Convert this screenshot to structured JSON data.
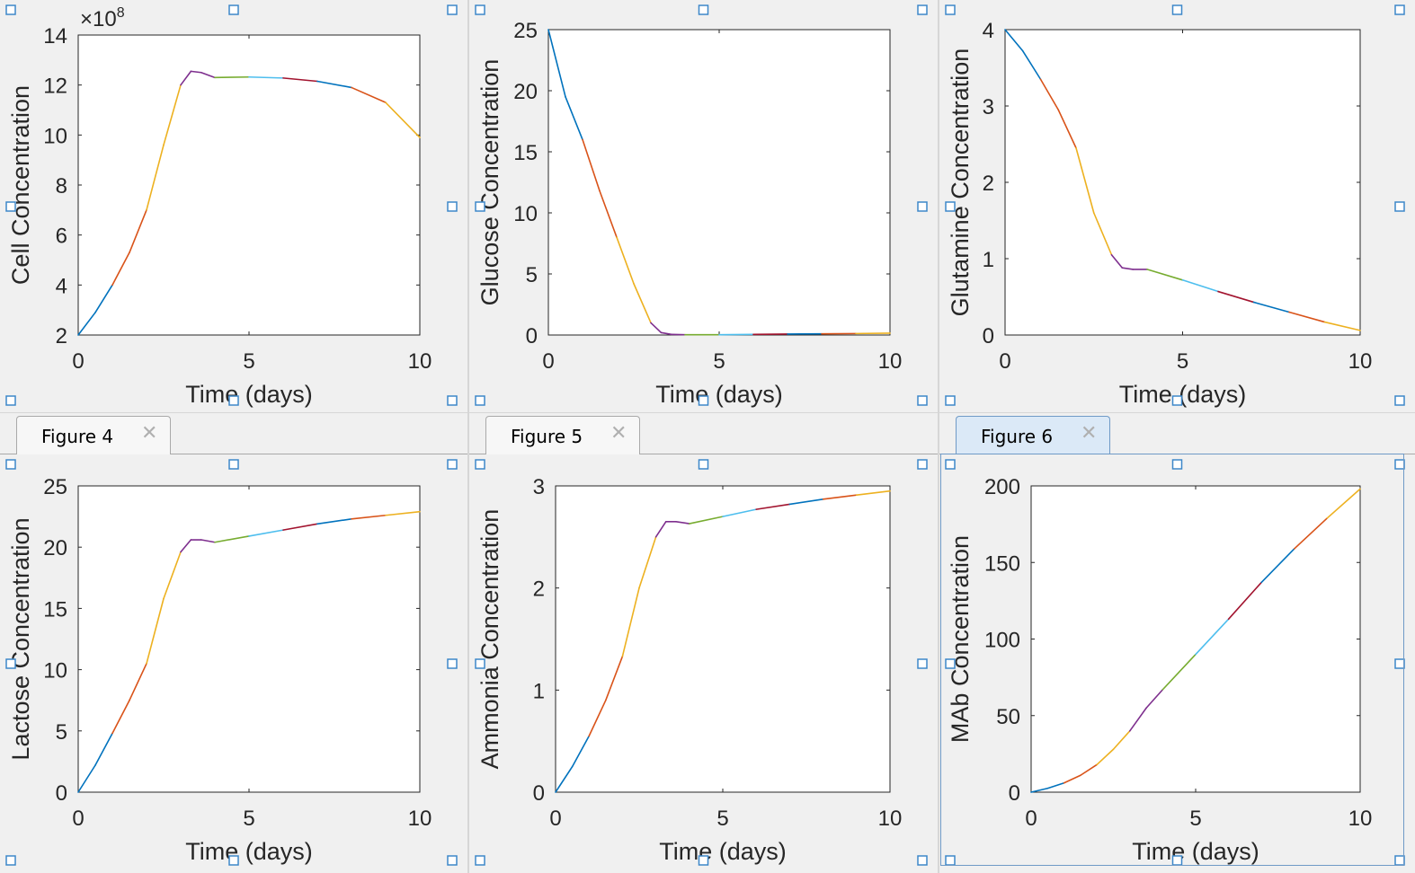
{
  "tabs": [
    {
      "label": "Figure 4",
      "close_icon": "close-icon",
      "active": false
    },
    {
      "label": "Figure 5",
      "close_icon": "close-icon",
      "active": false
    },
    {
      "label": "Figure 6",
      "close_icon": "close-icon",
      "active": true
    }
  ],
  "colors": {
    "series": [
      "#0072BD",
      "#D95319",
      "#EDB120",
      "#7E2F8E",
      "#77AC30",
      "#4DBEEE",
      "#A2142F"
    ],
    "handle": "#3d87c9",
    "active_tab": "#dbe9f7"
  },
  "chart_data": [
    {
      "type": "line",
      "title": "",
      "xlabel": "Time (days)",
      "ylabel": "Cell Concentration",
      "xlim": [
        0,
        10
      ],
      "ylim": [
        2,
        14
      ],
      "exponent": "×10^8",
      "xticks": [
        "0",
        "5",
        "10"
      ],
      "yticks": [
        "2",
        "4",
        "6",
        "8",
        "10",
        "12",
        "14"
      ],
      "grid": false,
      "legend": "none",
      "x": [
        0,
        0.5,
        1,
        1.5,
        2,
        2.5,
        3,
        3.3,
        3.6,
        4,
        5,
        6,
        7,
        8,
        9,
        10
      ],
      "y": [
        2.0,
        2.9,
        4.0,
        5.3,
        7.0,
        9.6,
        12.0,
        12.55,
        12.5,
        12.3,
        12.32,
        12.28,
        12.15,
        11.9,
        11.3,
        9.9
      ]
    },
    {
      "type": "line",
      "title": "",
      "xlabel": "Time (days)",
      "ylabel": "Glucose Concentration",
      "xlim": [
        0,
        10
      ],
      "ylim": [
        0,
        25
      ],
      "xticks": [
        "0",
        "5",
        "10"
      ],
      "yticks": [
        "0",
        "5",
        "10",
        "15",
        "20",
        "25"
      ],
      "grid": false,
      "legend": "none",
      "x": [
        0,
        0.5,
        1,
        1.5,
        2,
        2.5,
        3,
        3.3,
        3.6,
        4,
        5,
        6,
        7,
        8,
        9,
        10
      ],
      "y": [
        25,
        19.5,
        16.0,
        11.8,
        8.0,
        4.2,
        1.0,
        0.2,
        0.05,
        0.02,
        0.02,
        0.05,
        0.08,
        0.1,
        0.12,
        0.15
      ]
    },
    {
      "type": "line",
      "title": "",
      "xlabel": "Time (days)",
      "ylabel": "Glutamine Concentration",
      "xlim": [
        0,
        10
      ],
      "ylim": [
        0,
        4
      ],
      "xticks": [
        "0",
        "5",
        "10"
      ],
      "yticks": [
        "0",
        "1",
        "2",
        "3",
        "4"
      ],
      "grid": false,
      "legend": "none",
      "x": [
        0,
        0.5,
        1,
        1.5,
        2,
        2.5,
        3,
        3.3,
        3.6,
        4,
        5,
        6,
        7,
        8,
        9,
        10
      ],
      "y": [
        4.0,
        3.72,
        3.35,
        2.95,
        2.45,
        1.6,
        1.05,
        0.88,
        0.86,
        0.86,
        0.72,
        0.57,
        0.43,
        0.3,
        0.17,
        0.06
      ]
    },
    {
      "type": "line",
      "title": "",
      "xlabel": "Time (days)",
      "ylabel": "Lactose Concentration",
      "xlim": [
        0,
        10
      ],
      "ylim": [
        0,
        25
      ],
      "xticks": [
        "0",
        "5",
        "10"
      ],
      "yticks": [
        "0",
        "5",
        "10",
        "15",
        "20",
        "25"
      ],
      "grid": false,
      "legend": "none",
      "x": [
        0,
        0.5,
        1,
        1.5,
        2,
        2.5,
        3,
        3.3,
        3.6,
        4,
        5,
        6,
        7,
        8,
        9,
        10
      ],
      "y": [
        0,
        2.2,
        4.8,
        7.5,
        10.5,
        15.8,
        19.6,
        20.6,
        20.6,
        20.4,
        20.9,
        21.4,
        21.9,
        22.3,
        22.6,
        22.9
      ]
    },
    {
      "type": "line",
      "title": "",
      "xlabel": "Time (days)",
      "ylabel": "Ammonia Concentration",
      "xlim": [
        0,
        10
      ],
      "ylim": [
        0,
        3
      ],
      "xticks": [
        "0",
        "5",
        "10"
      ],
      "yticks": [
        "0",
        "1",
        "2",
        "3"
      ],
      "grid": false,
      "legend": "none",
      "x": [
        0,
        0.5,
        1,
        1.5,
        2,
        2.5,
        3,
        3.3,
        3.6,
        4,
        5,
        6,
        7,
        8,
        9,
        10
      ],
      "y": [
        0,
        0.25,
        0.55,
        0.9,
        1.33,
        2.0,
        2.5,
        2.65,
        2.65,
        2.63,
        2.7,
        2.77,
        2.82,
        2.87,
        2.91,
        2.95
      ]
    },
    {
      "type": "line",
      "title": "",
      "xlabel": "Time (days)",
      "ylabel": "MAb Concentration",
      "xlim": [
        0,
        10
      ],
      "ylim": [
        0,
        200
      ],
      "xticks": [
        "0",
        "5",
        "10"
      ],
      "yticks": [
        "0",
        "50",
        "100",
        "150",
        "200"
      ],
      "grid": false,
      "legend": "none",
      "x": [
        0,
        0.5,
        1,
        1.5,
        2,
        2.5,
        3,
        3.5,
        4,
        5,
        6,
        7,
        8,
        9,
        10
      ],
      "y": [
        0,
        2.5,
        6,
        11,
        18,
        28,
        40,
        55,
        67,
        90,
        113,
        137,
        159,
        179,
        198
      ]
    }
  ]
}
